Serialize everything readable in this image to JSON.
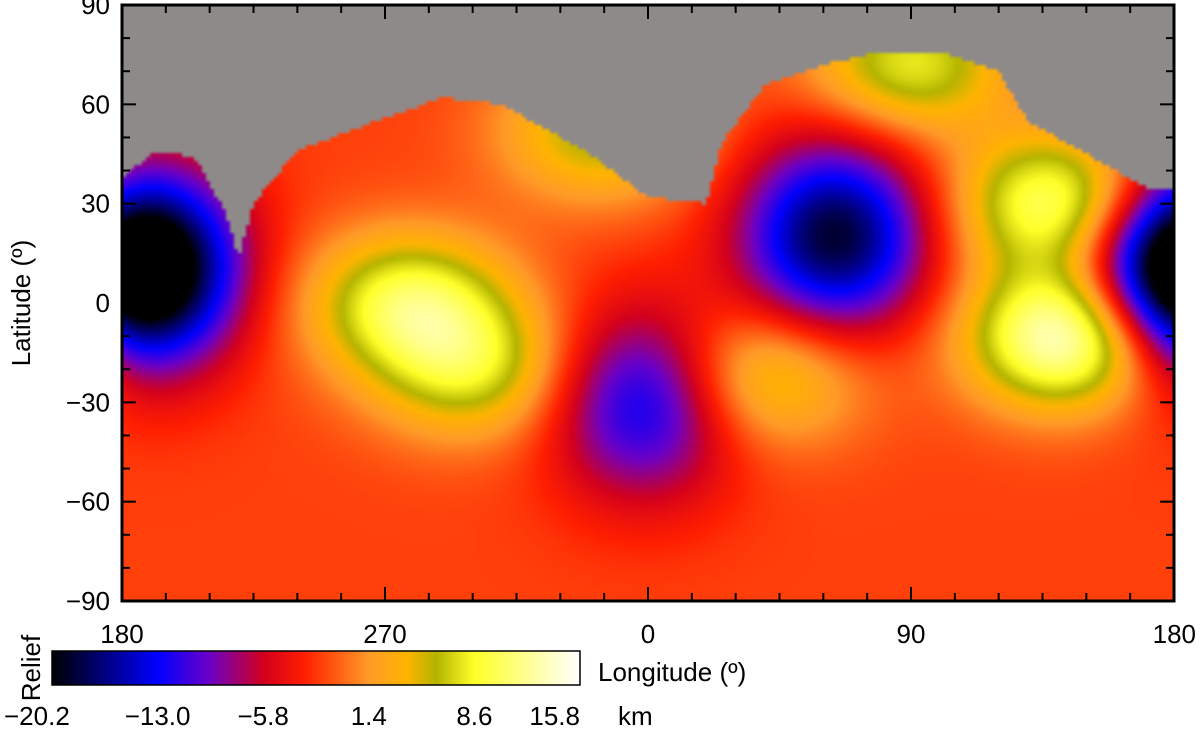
{
  "chart_data": {
    "type": "heatmap",
    "title": "",
    "xlabel": "Longitude (º)",
    "ylabel": "Latitude (º)",
    "x_ticks": [
      "180",
      "270",
      "0",
      "90",
      "180"
    ],
    "y_ticks": [
      90,
      60,
      30,
      0,
      -30,
      -60,
      -90
    ],
    "xlim": [
      180,
      540
    ],
    "ylim": [
      -90,
      90
    ],
    "grid": false,
    "no_data_color": "#8e8a8a",
    "colorbar": {
      "label": "Relief",
      "unit": "km",
      "ticks": [
        "−20.2",
        "−13.0",
        "−5.8",
        "1.4",
        "8.6",
        "15.8"
      ],
      "range": [
        -20.2,
        15.8
      ],
      "placement": "bottom-left",
      "stops": [
        {
          "value": -20.2,
          "color": "#000000"
        },
        {
          "value": -13.0,
          "color": "#0000ff"
        },
        {
          "value": -9.5,
          "color": "#6a00c8"
        },
        {
          "value": -5.8,
          "color": "#d2001e"
        },
        {
          "value": -3.0,
          "color": "#ff1e00"
        },
        {
          "value": 1.4,
          "color": "#ff9b28"
        },
        {
          "value": 4.0,
          "color": "#ffb400"
        },
        {
          "value": 6.0,
          "color": "#b4b400"
        },
        {
          "value": 8.6,
          "color": "#ffff28"
        },
        {
          "value": 15.8,
          "color": "#ffffff"
        }
      ]
    },
    "features": [
      {
        "name": "low",
        "lon": 188,
        "lat": 12,
        "relief": -20.2
      },
      {
        "name": "low",
        "lon": 424,
        "lat": 20,
        "relief": -19.0
      },
      {
        "name": "low",
        "lon": 359,
        "lat": -30,
        "relief": -13.5
      },
      {
        "name": "low",
        "lon": 538,
        "lat": 5,
        "relief": -13.0
      },
      {
        "name": "high",
        "lon": 278,
        "lat": 0,
        "relief": 9.5
      },
      {
        "name": "high",
        "lon": 300,
        "lat": -20,
        "relief": 7.0
      },
      {
        "name": "high",
        "lon": 505,
        "lat": -10,
        "relief": 15.8
      },
      {
        "name": "high",
        "lon": 500,
        "lat": 30,
        "relief": 11.0
      },
      {
        "name": "high",
        "lon": 400,
        "lat": -22,
        "relief": 6.0
      },
      {
        "name": "high",
        "lon": 450,
        "lat": 72,
        "relief": 8.0
      },
      {
        "name": "high",
        "lon": 344,
        "lat": 52,
        "relief": 6.5
      }
    ]
  }
}
